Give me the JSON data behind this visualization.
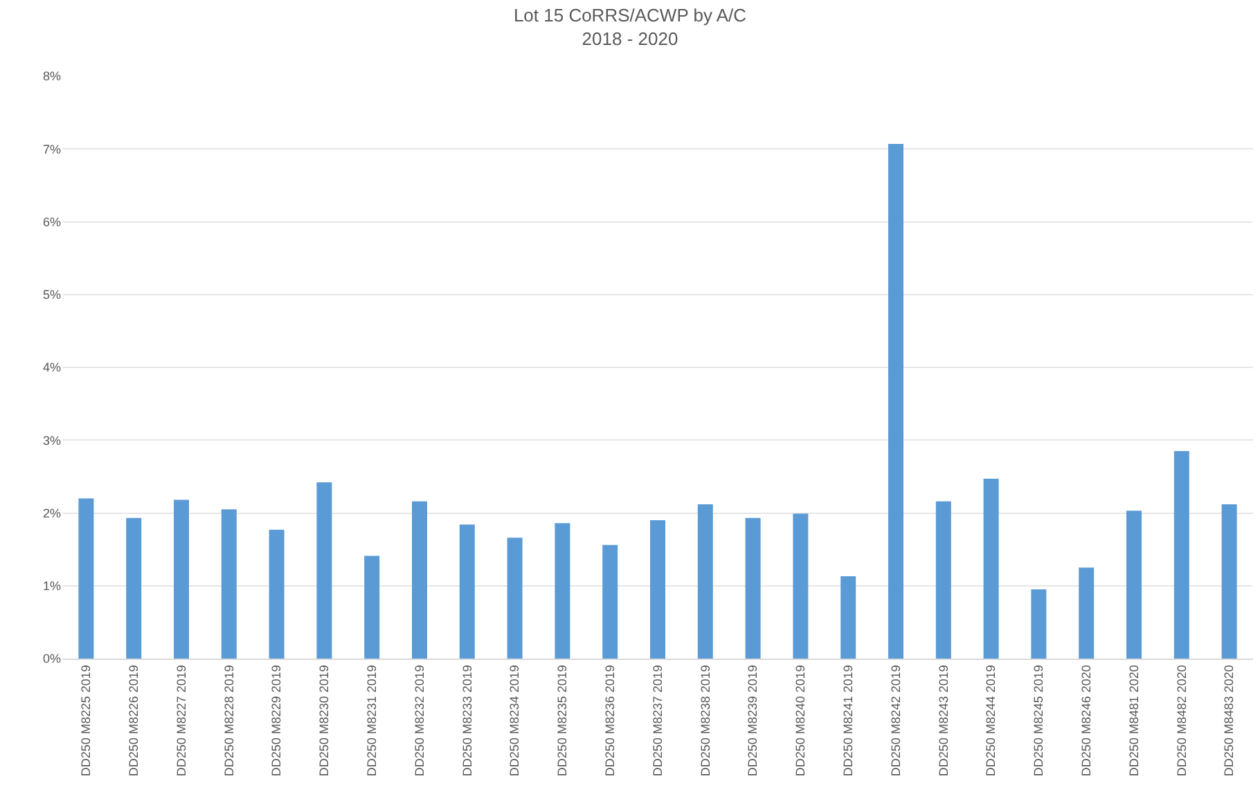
{
  "chart_data": {
    "type": "bar",
    "title": "Lot 15 CoRRS/ACWP by A/C\n2018 - 2020",
    "categories": [
      "DD250 M8225 2019",
      "DD250 M8226 2019",
      "DD250 M8227 2019",
      "DD250 M8228 2019",
      "DD250 M8229 2019",
      "DD250 M8230 2019",
      "DD250 M8231 2019",
      "DD250 M8232 2019",
      "DD250 M8233 2019",
      "DD250 M8234 2019",
      "DD250 M8235 2019",
      "DD250 M8236 2019",
      "DD250 M8237 2019",
      "DD250 M8238 2019",
      "DD250 M8239 2019",
      "DD250 M8240 2019",
      "DD250 M8241 2019",
      "DD250 M8242 2019",
      "DD250 M8243 2019",
      "DD250 M8244 2019",
      "DD250 M8245 2019",
      "DD250 M8246 2020",
      "DD250 M8481 2020",
      "DD250 M8482 2020",
      "DD250 M8483 2020"
    ],
    "values": [
      2.2,
      1.93,
      2.18,
      2.05,
      1.77,
      2.42,
      1.41,
      2.16,
      1.84,
      1.66,
      1.86,
      1.56,
      1.9,
      2.12,
      1.93,
      1.99,
      1.13,
      7.07,
      2.16,
      2.47,
      0.95,
      1.25,
      2.03,
      2.85,
      2.12
    ],
    "color": "#5b9bd5",
    "ylim": [
      0,
      8
    ],
    "yticks": [
      {
        "value": 0,
        "label": "0%"
      },
      {
        "value": 1,
        "label": "1%"
      },
      {
        "value": 2,
        "label": "2%"
      },
      {
        "value": 3,
        "label": "3%"
      },
      {
        "value": 4,
        "label": "4%"
      },
      {
        "value": 5,
        "label": "5%"
      },
      {
        "value": 6,
        "label": "6%"
      },
      {
        "value": 7,
        "label": "7%"
      },
      {
        "value": 8,
        "label": "8%"
      }
    ],
    "grid": "y",
    "legend": false
  }
}
